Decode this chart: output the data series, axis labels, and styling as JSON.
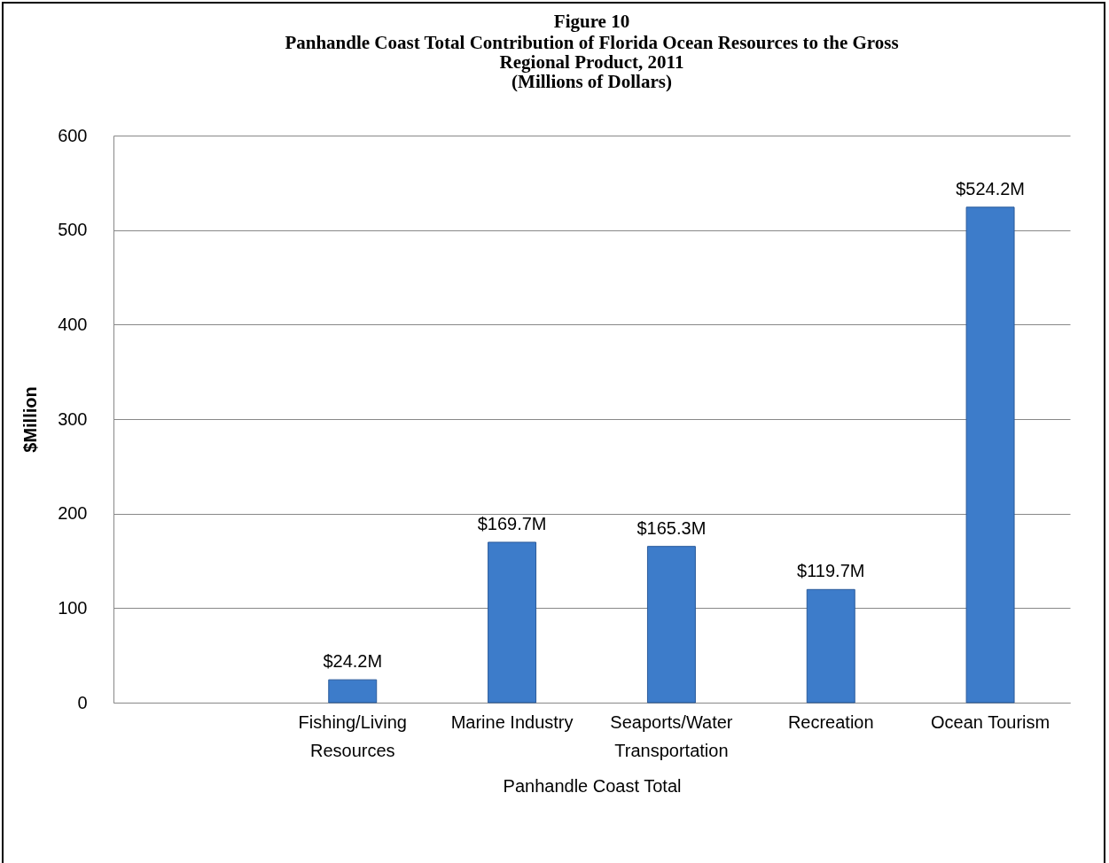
{
  "chart_data": {
    "type": "bar",
    "title": "Figure 10",
    "subtitle": "Panhandle Coast Total Contribution of Florida Ocean Resources to the Gross Regional Product, 2011",
    "annotations": [
      "(Millions of Dollars)"
    ],
    "xlabel": "Panhandle Coast Total",
    "ylabel": "$Million",
    "categories": [
      null,
      "Fishing/Living Resources",
      "Marine Industry",
      "Seaports/Water Transportation",
      "Recreation",
      "Ocean Tourism"
    ],
    "values": [
      null,
      24.2,
      169.7,
      165.3,
      119.7,
      524.2
    ],
    "value_labels": [
      null,
      "$24.2M",
      "$169.7M",
      "$165.3M",
      "$119.7M",
      "$524.2M"
    ],
    "color": "#3d7cca",
    "ylim": [
      0,
      600
    ],
    "yticks": [
      0,
      100,
      200,
      300,
      400,
      500,
      600
    ],
    "grid": "y"
  }
}
